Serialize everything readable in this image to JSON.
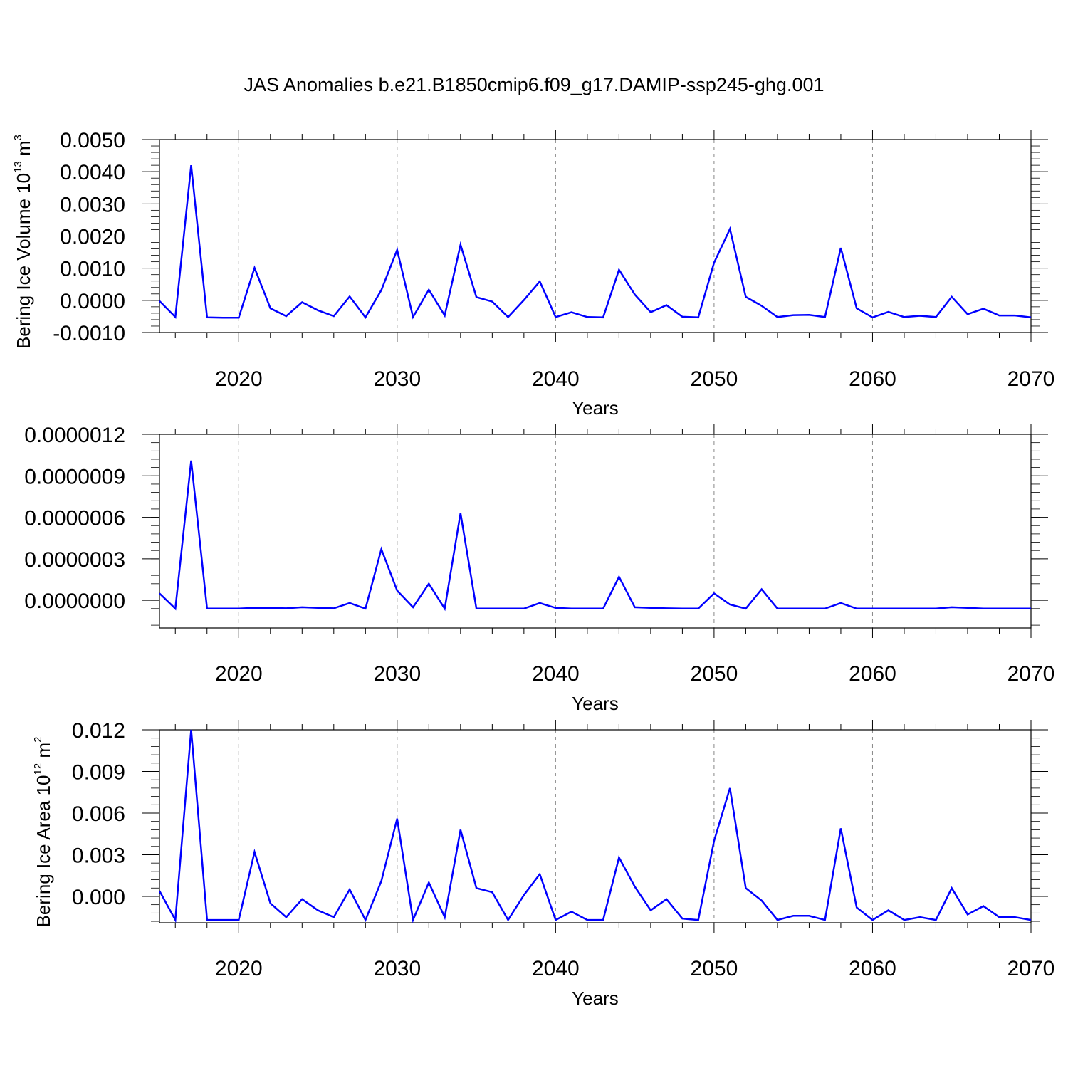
{
  "title": "JAS Anomalies b.e21.B1850cmip6.f09_g17.DAMIP-ssp245-ghg.001",
  "colors": {
    "line": "#0000ff",
    "axis": "#000000",
    "grid": "#888888"
  },
  "chart_data": [
    {
      "type": "line",
      "xlabel": "Years",
      "ylabel": {
        "text": "Bering Ice Volume 10",
        "sup": "13",
        "unit": " m",
        "unit_sup": "3"
      },
      "xlim": [
        2015,
        2070
      ],
      "ylim": [
        -0.001,
        0.005
      ],
      "x_ticks": [
        2020,
        2030,
        2040,
        2050,
        2060,
        2070
      ],
      "y_ticks": [
        "-0.0010",
        "0.0000",
        "0.0010",
        "0.0020",
        "0.0030",
        "0.0040",
        "0.0050"
      ],
      "grid": "vertical dashed at labeled years",
      "x": [
        2015,
        2016,
        2017,
        2018,
        2019,
        2020,
        2021,
        2022,
        2023,
        2024,
        2025,
        2026,
        2027,
        2028,
        2029,
        2030,
        2031,
        2032,
        2033,
        2034,
        2035,
        2036,
        2037,
        2038,
        2039,
        2040,
        2041,
        2042,
        2043,
        2044,
        2045,
        2046,
        2047,
        2048,
        2049,
        2050,
        2051,
        2052,
        2053,
        2054,
        2055,
        2056,
        2057,
        2058,
        2059,
        2060,
        2061,
        2062,
        2063,
        2064,
        2065,
        2066,
        2067,
        2068,
        2069,
        2070
      ],
      "values": [
        -2e-05,
        -0.00052,
        0.0042,
        -0.00053,
        -0.00054,
        -0.00054,
        0.00101,
        -0.00025,
        -0.00049,
        -6e-05,
        -0.00031,
        -0.00049,
        0.00012,
        -0.00053,
        0.00032,
        0.00157,
        -0.00052,
        0.00033,
        -0.00047,
        0.00173,
        0.0001,
        -4e-05,
        -0.00052,
        1e-05,
        0.00059,
        -0.00052,
        -0.00037,
        -0.00052,
        -0.00053,
        0.00095,
        0.00018,
        -0.00037,
        -0.00015,
        -0.00051,
        -0.00053,
        0.00117,
        0.00222,
        0.00011,
        -0.00017,
        -0.00052,
        -0.00046,
        -0.00045,
        -0.00052,
        0.00163,
        -0.00025,
        -0.00053,
        -0.00036,
        -0.00052,
        -0.00048,
        -0.00052,
        0.00011,
        -0.00043,
        -0.00026,
        -0.00047,
        -0.00047,
        -0.00053
      ]
    },
    {
      "type": "line",
      "xlabel": "Years",
      "xlim": [
        2015,
        2070
      ],
      "ylim": [
        -2e-07,
        1.2e-06
      ],
      "x_ticks": [
        2020,
        2030,
        2040,
        2050,
        2060,
        2070
      ],
      "y_ticks": [
        "0.0000000",
        "0.0000003",
        "0.0000006",
        "0.0000009",
        "0.0000012"
      ],
      "grid": "vertical dashed at labeled years",
      "x": [
        2015,
        2016,
        2017,
        2018,
        2019,
        2020,
        2021,
        2022,
        2023,
        2024,
        2025,
        2026,
        2027,
        2028,
        2029,
        2030,
        2031,
        2032,
        2033,
        2034,
        2035,
        2036,
        2037,
        2038,
        2039,
        2040,
        2041,
        2042,
        2043,
        2044,
        2045,
        2046,
        2047,
        2048,
        2049,
        2050,
        2051,
        2052,
        2053,
        2054,
        2055,
        2056,
        2057,
        2058,
        2059,
        2060,
        2061,
        2062,
        2063,
        2064,
        2065,
        2066,
        2067,
        2068,
        2069,
        2070
      ],
      "values": [
        5e-08,
        -6e-08,
        1.01e-06,
        -6e-08,
        -6e-08,
        -6e-08,
        -5.5e-08,
        -5.5e-08,
        -5.8e-08,
        -5e-08,
        -5.5e-08,
        -5.8e-08,
        -2e-08,
        -6e-08,
        3.7e-07,
        7e-08,
        -5e-08,
        1.2e-07,
        -6e-08,
        6.3e-07,
        -6e-08,
        -6e-08,
        -6e-08,
        -6e-08,
        -2e-08,
        -5.5e-08,
        -6e-08,
        -6e-08,
        -6e-08,
        1.7e-07,
        -5e-08,
        -5.5e-08,
        -5.8e-08,
        -6e-08,
        -6e-08,
        5e-08,
        -3e-08,
        -6e-08,
        8e-08,
        -6e-08,
        -6e-08,
        -6e-08,
        -6e-08,
        -2e-08,
        -6e-08,
        -6e-08,
        -6e-08,
        -6e-08,
        -6e-08,
        -6e-08,
        -5e-08,
        -5.5e-08,
        -6e-08,
        -6e-08,
        -6e-08,
        -6e-08
      ]
    },
    {
      "type": "line",
      "xlabel": "Years",
      "ylabel": {
        "text": "Bering Ice Area 10",
        "sup": "12",
        "unit": " m",
        "unit_sup": "2"
      },
      "xlim": [
        2015,
        2070
      ],
      "ylim": [
        -0.0019,
        0.012
      ],
      "x_ticks": [
        2020,
        2030,
        2040,
        2050,
        2060,
        2070
      ],
      "y_ticks": [
        "0.000",
        "0.003",
        "0.006",
        "0.009",
        "0.012"
      ],
      "grid": "vertical dashed at labeled years",
      "x": [
        2015,
        2016,
        2017,
        2018,
        2019,
        2020,
        2021,
        2022,
        2023,
        2024,
        2025,
        2026,
        2027,
        2028,
        2029,
        2030,
        2031,
        2032,
        2033,
        2034,
        2035,
        2036,
        2037,
        2038,
        2039,
        2040,
        2041,
        2042,
        2043,
        2044,
        2045,
        2046,
        2047,
        2048,
        2049,
        2050,
        2051,
        2052,
        2053,
        2054,
        2055,
        2056,
        2057,
        2058,
        2059,
        2060,
        2061,
        2062,
        2063,
        2064,
        2065,
        2066,
        2067,
        2068,
        2069,
        2070
      ],
      "values": [
        0.0004,
        -0.0017,
        0.012,
        -0.0017,
        -0.0017,
        -0.0017,
        0.0032,
        -0.0005,
        -0.0015,
        -0.0002,
        -0.001,
        -0.0015,
        0.0005,
        -0.0017,
        0.0011,
        0.0056,
        -0.0017,
        0.001,
        -0.0015,
        0.0048,
        0.0006,
        0.0003,
        -0.0017,
        0.0001,
        0.0016,
        -0.0017,
        -0.0011,
        -0.0017,
        -0.0017,
        0.0028,
        0.0007,
        -0.001,
        -0.0002,
        -0.0016,
        -0.0017,
        0.004,
        0.0078,
        0.0006,
        -0.0003,
        -0.0017,
        -0.0014,
        -0.0014,
        -0.0017,
        0.0049,
        -0.0008,
        -0.0017,
        -0.001,
        -0.0017,
        -0.0015,
        -0.0017,
        0.0006,
        -0.0013,
        -0.0007,
        -0.0015,
        -0.0015,
        -0.0017
      ]
    }
  ]
}
